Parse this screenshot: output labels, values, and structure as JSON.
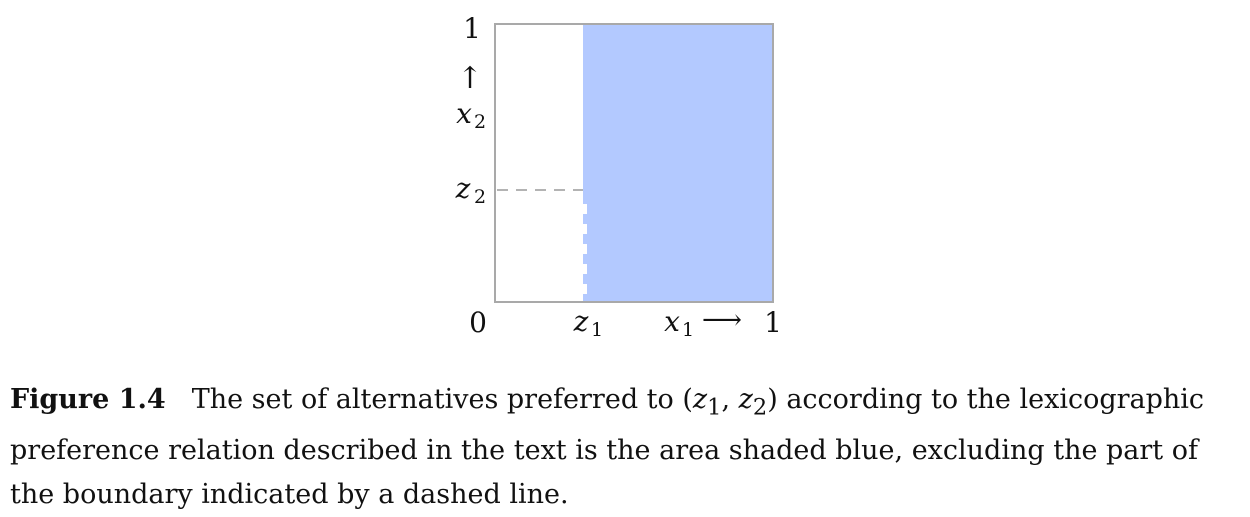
{
  "diagram": {
    "colors": {
      "shaded": "#b3c9ff",
      "frame": "#a9a9a9",
      "dashed": "#b3b3b3"
    },
    "labels": {
      "y_top": "1",
      "y_arrow": "↑",
      "y_var": "x",
      "y_var_sub": "2",
      "z2": "z",
      "z2_sub": "2",
      "origin": "0",
      "z1": "z",
      "z1_sub": "1",
      "x_var": "x",
      "x_var_sub": "1",
      "x_arrow": "⟶",
      "x_right": "1"
    }
  },
  "caption": {
    "label": "Figure 1.4",
    "text_before": "The set of alternatives preferred to (",
    "z1": "z",
    "z1_sub": "1",
    "comma": ", ",
    "z2": "z",
    "z2_sub": "2",
    "text_after": ") according to the lexicographic preference relation described in the text is the area shaded blue, excluding the part of the boundary indicated by a dashed line."
  }
}
